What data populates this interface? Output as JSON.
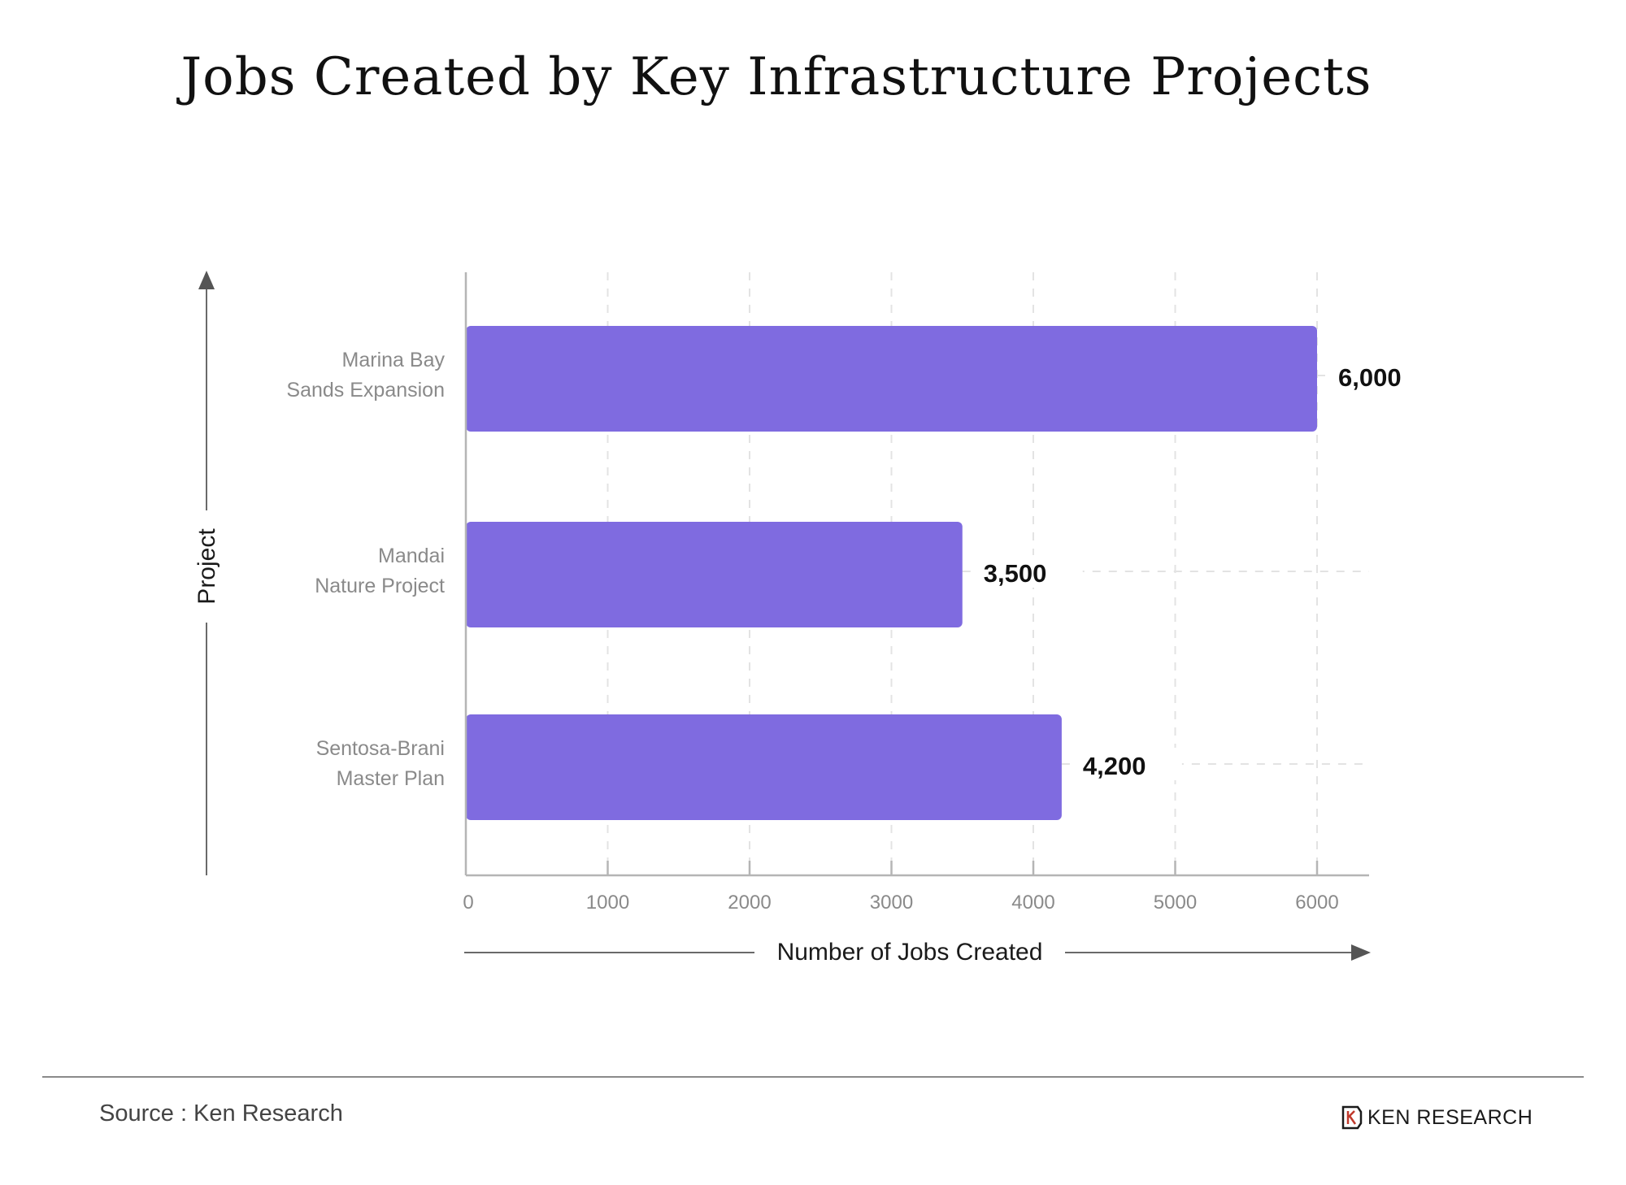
{
  "chart_data": {
    "type": "bar",
    "orientation": "horizontal",
    "title": "Jobs Created by Key Infrastructure Projects",
    "categories": [
      [
        "Marina Bay",
        "Sands Expansion"
      ],
      [
        "Mandai",
        "Nature Project"
      ],
      [
        "Sentosa-Brani",
        "Master Plan"
      ]
    ],
    "values": [
      6000,
      3500,
      4200
    ],
    "data_labels": [
      "6,000",
      "3,500",
      "4,200"
    ],
    "xlabel": "Number of Jobs Created",
    "ylabel": "Project",
    "xlim": [
      0,
      6500
    ],
    "x_ticks": [
      0,
      1000,
      2000,
      3000,
      4000,
      5000,
      6000
    ],
    "x_tick_labels": [
      "0",
      "1000",
      "2000",
      "3000",
      "4000",
      "5000",
      "6000"
    ],
    "grid": "vertical dashed",
    "bar_color": "#7f6be0"
  },
  "footer": {
    "source": "Source : Ken Research",
    "brand": "KEN RESEARCH",
    "brand_icon": "ken-research-logo-icon"
  }
}
